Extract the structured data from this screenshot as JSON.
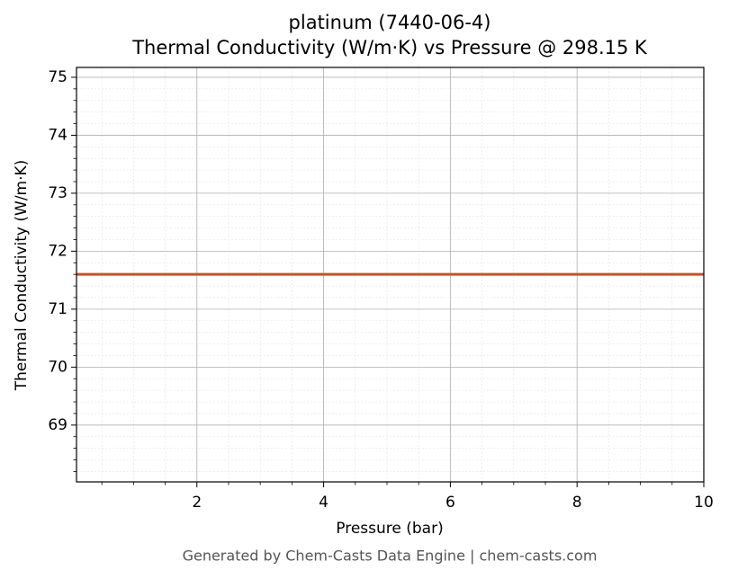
{
  "chart_data": {
    "type": "line",
    "title": "platinum (7440-06-4)",
    "subtitle": "Thermal Conductivity (W/m·K) vs Pressure @ 298.15 K",
    "x_label": "Pressure (bar)",
    "y_label": "Thermal Conductivity (W/m·K)",
    "footer": "Generated by Chem-Casts Data Engine | chem-casts.com",
    "x": [
      0.1,
      10
    ],
    "series": [
      {
        "name": "Thermal Conductivity",
        "color": "#c8512a",
        "values": [
          71.6,
          71.6
        ]
      }
    ],
    "xlim": [
      0.1,
      10
    ],
    "xticks": [
      2,
      4,
      6,
      8,
      10
    ],
    "xminorticks": [
      0.5,
      1,
      1.5,
      2.5,
      3,
      3.5,
      4.5,
      5,
      5.5,
      6.5,
      7,
      7.5,
      8.5,
      9,
      9.5
    ],
    "ylim": [
      68.02,
      75.17
    ],
    "yticks": [
      69,
      70,
      71,
      72,
      73,
      74,
      75
    ],
    "yminorticks": [
      68.2,
      68.4,
      68.6,
      68.8,
      69.2,
      69.4,
      69.6,
      69.8,
      70.2,
      70.4,
      70.6,
      70.8,
      71.2,
      71.4,
      71.6,
      71.8,
      72.2,
      72.4,
      72.6,
      72.8,
      73.2,
      73.4,
      73.6,
      73.8,
      74.2,
      74.4,
      74.6,
      74.8
    ],
    "grid": true,
    "minor_grid": true
  }
}
